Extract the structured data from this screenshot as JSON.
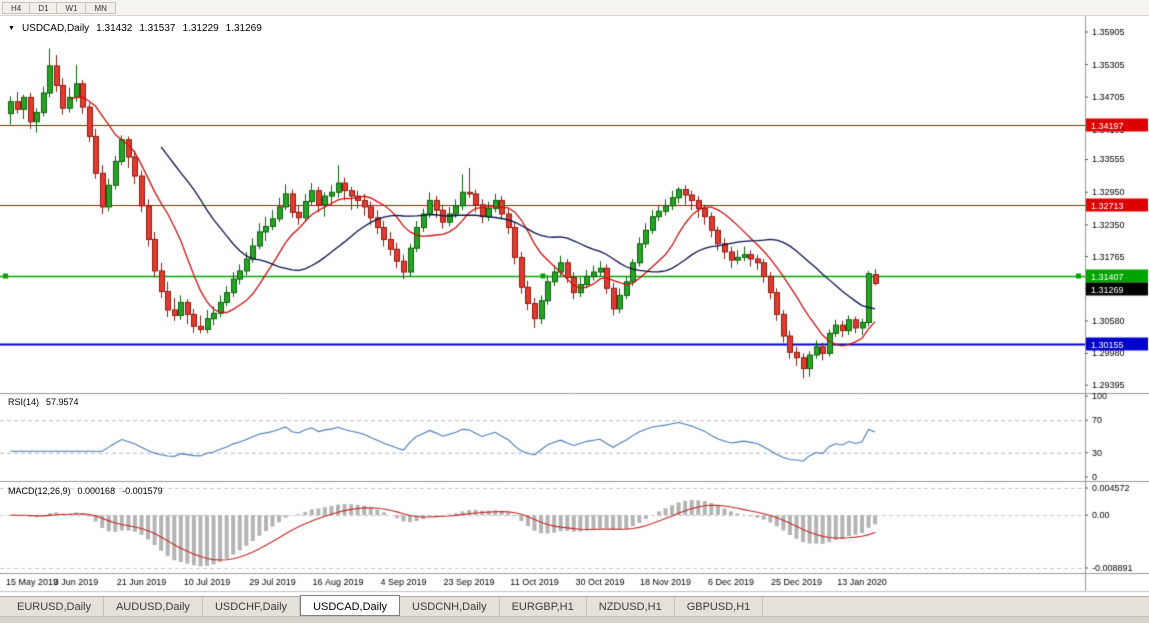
{
  "toolbar": {
    "periods": [
      "H4",
      "D1",
      "W1",
      "MN"
    ]
  },
  "tabs": {
    "items": [
      "EURUSD,Daily",
      "AUDUSD,Daily",
      "USDCHF,Daily",
      "USDCAD,Daily",
      "USDCNH,Daily",
      "EURGBP,H1",
      "NZDUSD,H1",
      "GBPUSD,H1"
    ],
    "active_index": 3
  },
  "chart_data": {
    "type": "candlestick+indicators",
    "symbol": "USDCAD",
    "timeframe": "Daily",
    "title": {
      "text": "USDCAD,Daily",
      "open": "1.31432",
      "high": "1.31537",
      "low": "1.31229",
      "close": "1.31269"
    },
    "x_labels": [
      "15 May 2019",
      "3 Jun 2019",
      "21 Jun 2019",
      "10 Jul 2019",
      "29 Jul 2019",
      "16 Aug 2019",
      "4 Sep 2019",
      "23 Sep 2019",
      "11 Oct 2019",
      "30 Oct 2019",
      "18 Nov 2019",
      "6 Dec 2019",
      "25 Dec 2019",
      "13 Jan 2020"
    ],
    "candles_per_label": 10,
    "price_axis": {
      "min": 1.2925,
      "max": 1.362,
      "labels": [
        "1.35905",
        "1.35305",
        "1.34705",
        "1.34105",
        "1.33555",
        "1.32950",
        "1.32350",
        "1.31765",
        "1.31165",
        "1.30580",
        "1.29980",
        "1.29395"
      ]
    },
    "colors": {
      "bull": "#27a327",
      "bull_edge": "#0b620b",
      "bear": "#e13b30",
      "bear_edge": "#8f1d12"
    },
    "hlines": [
      {
        "label": "1.34197",
        "price": 1.34197,
        "color": "#dd0000",
        "width": 1.2
      },
      {
        "label": "1.32713",
        "price": 1.32713,
        "color": "#dd0000",
        "width": 1.2
      },
      {
        "label": "1.31407",
        "price": 1.31407,
        "color": "#00a400",
        "width": 1.6,
        "handles": true
      },
      {
        "label": "1.30155",
        "price": 1.30155,
        "color": "#0000cd",
        "width": 2
      }
    ],
    "current_price": {
      "label": "1.31269",
      "color": "#000000"
    },
    "moving_averages": [
      {
        "name": "fast-ma",
        "period": 10,
        "color": "#cc1111"
      },
      {
        "name": "slow-ma",
        "period": 24,
        "color": "#0a1448"
      }
    ],
    "rsi": {
      "label": "RSI(14)",
      "value_text": "57.9574",
      "period": 14,
      "color": "#4a7ab5",
      "levels": [
        70,
        30
      ],
      "axis_labels": [
        {
          "v": 100,
          "t": "100"
        },
        {
          "v": 70,
          "t": "70"
        },
        {
          "v": 30,
          "t": "30"
        },
        {
          "v": 0,
          "t": "0"
        }
      ]
    },
    "macd": {
      "label": "MACD(12,26,9)",
      "value_text": "0.000168",
      "signal_text": "-0.001579",
      "fast": 12,
      "slow": 26,
      "signal": 9,
      "hist_color": "#b4b4b4",
      "signal_color": "#c62828",
      "range": {
        "max": 0.004572,
        "min": -0.008891
      },
      "axis_labels": [
        {
          "v": 0.004572,
          "t": "0.004572"
        },
        {
          "v": 0,
          "t": "0.00"
        },
        {
          "v": -0.008891,
          "t": "-0.008891"
        }
      ]
    },
    "candles": [
      [
        1.344,
        1.3472,
        1.342,
        1.3462
      ],
      [
        1.3462,
        1.348,
        1.344,
        1.3448
      ],
      [
        1.3448,
        1.3475,
        1.343,
        1.347
      ],
      [
        1.347,
        1.3478,
        1.3412,
        1.3425
      ],
      [
        1.3425,
        1.345,
        1.3405,
        1.3442
      ],
      [
        1.3442,
        1.349,
        1.3435,
        1.3478
      ],
      [
        1.3478,
        1.356,
        1.347,
        1.3528
      ],
      [
        1.3528,
        1.3548,
        1.348,
        1.3492
      ],
      [
        1.3492,
        1.3505,
        1.3438,
        1.345
      ],
      [
        1.345,
        1.3488,
        1.3442,
        1.347
      ],
      [
        1.347,
        1.353,
        1.3462,
        1.3495
      ],
      [
        1.3495,
        1.3502,
        1.344,
        1.3452
      ],
      [
        1.3452,
        1.346,
        1.3388,
        1.3398
      ],
      [
        1.3398,
        1.3412,
        1.332,
        1.333
      ],
      [
        1.333,
        1.3345,
        1.3255,
        1.3268
      ],
      [
        1.3268,
        1.332,
        1.326,
        1.3308
      ],
      [
        1.3308,
        1.3362,
        1.33,
        1.3352
      ],
      [
        1.3352,
        1.34,
        1.3345,
        1.3392
      ],
      [
        1.3392,
        1.3398,
        1.334,
        1.336
      ],
      [
        1.336,
        1.3372,
        1.331,
        1.3325
      ],
      [
        1.3325,
        1.3335,
        1.3258,
        1.327
      ],
      [
        1.327,
        1.3282,
        1.3195,
        1.3208
      ],
      [
        1.3208,
        1.3222,
        1.3138,
        1.315
      ],
      [
        1.315,
        1.3165,
        1.31,
        1.3112
      ],
      [
        1.3112,
        1.313,
        1.3065,
        1.3078
      ],
      [
        1.3078,
        1.31,
        1.3058,
        1.3068
      ],
      [
        1.3068,
        1.3105,
        1.306,
        1.3092
      ],
      [
        1.3092,
        1.3098,
        1.3052,
        1.307
      ],
      [
        1.307,
        1.308,
        1.3036,
        1.3048
      ],
      [
        1.3048,
        1.3068,
        1.3035,
        1.3042
      ],
      [
        1.3042,
        1.3078,
        1.3035,
        1.3062
      ],
      [
        1.3062,
        1.3085,
        1.305,
        1.3072
      ],
      [
        1.3072,
        1.3105,
        1.3065,
        1.3092
      ],
      [
        1.3092,
        1.3122,
        1.3085,
        1.311
      ],
      [
        1.311,
        1.3148,
        1.3102,
        1.3135
      ],
      [
        1.3135,
        1.3162,
        1.3125,
        1.315
      ],
      [
        1.315,
        1.3185,
        1.3142,
        1.3172
      ],
      [
        1.3172,
        1.321,
        1.3165,
        1.3196
      ],
      [
        1.3196,
        1.3238,
        1.319,
        1.3222
      ],
      [
        1.3222,
        1.325,
        1.3205,
        1.3232
      ],
      [
        1.3232,
        1.3262,
        1.3225,
        1.3246
      ],
      [
        1.3246,
        1.3285,
        1.324,
        1.3268
      ],
      [
        1.3268,
        1.331,
        1.3262,
        1.3292
      ],
      [
        1.3292,
        1.33,
        1.3248,
        1.3258
      ],
      [
        1.3258,
        1.327,
        1.3235,
        1.3248
      ],
      [
        1.3248,
        1.3292,
        1.3242,
        1.3278
      ],
      [
        1.3278,
        1.3312,
        1.327,
        1.3298
      ],
      [
        1.3298,
        1.3305,
        1.3258,
        1.3272
      ],
      [
        1.3272,
        1.3295,
        1.325,
        1.3288
      ],
      [
        1.3288,
        1.3308,
        1.327,
        1.3295
      ],
      [
        1.3295,
        1.3345,
        1.3285,
        1.3312
      ],
      [
        1.3312,
        1.3322,
        1.328,
        1.3298
      ],
      [
        1.3298,
        1.3305,
        1.3262,
        1.3288
      ],
      [
        1.3288,
        1.3298,
        1.3265,
        1.328
      ],
      [
        1.328,
        1.3292,
        1.3252,
        1.3268
      ],
      [
        1.3268,
        1.3278,
        1.3235,
        1.3248
      ],
      [
        1.3248,
        1.3262,
        1.3218,
        1.323
      ],
      [
        1.323,
        1.3242,
        1.3195,
        1.3208
      ],
      [
        1.3208,
        1.3222,
        1.3178,
        1.319
      ],
      [
        1.319,
        1.3202,
        1.3155,
        1.3168
      ],
      [
        1.3168,
        1.318,
        1.3135,
        1.3148
      ],
      [
        1.3148,
        1.32,
        1.314,
        1.3192
      ],
      [
        1.3192,
        1.3242,
        1.3185,
        1.323
      ],
      [
        1.323,
        1.3265,
        1.3222,
        1.3255
      ],
      [
        1.3255,
        1.3295,
        1.3248,
        1.328
      ],
      [
        1.328,
        1.3288,
        1.3248,
        1.3262
      ],
      [
        1.3262,
        1.3272,
        1.3228,
        1.324
      ],
      [
        1.324,
        1.3268,
        1.3232,
        1.3255
      ],
      [
        1.3255,
        1.3282,
        1.3248,
        1.327
      ],
      [
        1.327,
        1.3328,
        1.3262,
        1.3295
      ],
      [
        1.3295,
        1.334,
        1.3285,
        1.3292
      ],
      [
        1.3292,
        1.33,
        1.3258,
        1.3272
      ],
      [
        1.3272,
        1.3282,
        1.3238,
        1.325
      ],
      [
        1.325,
        1.3278,
        1.3242,
        1.3265
      ],
      [
        1.3265,
        1.3292,
        1.3258,
        1.328
      ],
      [
        1.328,
        1.3288,
        1.3245,
        1.3255
      ],
      [
        1.3255,
        1.3265,
        1.3218,
        1.323
      ],
      [
        1.323,
        1.324,
        1.3162,
        1.3175
      ],
      [
        1.3175,
        1.3185,
        1.3108,
        1.312
      ],
      [
        1.312,
        1.3132,
        1.3078,
        1.309
      ],
      [
        1.309,
        1.31,
        1.3045,
        1.3062
      ],
      [
        1.3062,
        1.3105,
        1.3052,
        1.3095
      ],
      [
        1.3095,
        1.3142,
        1.3088,
        1.313
      ],
      [
        1.313,
        1.316,
        1.3122,
        1.3148
      ],
      [
        1.3148,
        1.3178,
        1.314,
        1.3165
      ],
      [
        1.3165,
        1.3172,
        1.3128,
        1.3138
      ],
      [
        1.3138,
        1.3148,
        1.3098,
        1.311
      ],
      [
        1.311,
        1.3138,
        1.3102,
        1.3125
      ],
      [
        1.3125,
        1.3152,
        1.3118,
        1.314
      ],
      [
        1.314,
        1.316,
        1.3132,
        1.3148
      ],
      [
        1.3148,
        1.3168,
        1.314,
        1.3155
      ],
      [
        1.3155,
        1.3162,
        1.3108,
        1.3118
      ],
      [
        1.3118,
        1.3128,
        1.3068,
        1.308
      ],
      [
        1.308,
        1.3118,
        1.3072,
        1.3105
      ],
      [
        1.3105,
        1.314,
        1.3098,
        1.313
      ],
      [
        1.313,
        1.3172,
        1.3122,
        1.3165
      ],
      [
        1.3165,
        1.3212,
        1.3158,
        1.32
      ],
      [
        1.32,
        1.3238,
        1.3192,
        1.3225
      ],
      [
        1.3225,
        1.3262,
        1.3218,
        1.325
      ],
      [
        1.325,
        1.3272,
        1.3242,
        1.326
      ],
      [
        1.326,
        1.3282,
        1.3252,
        1.327
      ],
      [
        1.327,
        1.3298,
        1.3262,
        1.3285
      ],
      [
        1.3285,
        1.3305,
        1.3275,
        1.33
      ],
      [
        1.33,
        1.3308,
        1.3272,
        1.329
      ],
      [
        1.329,
        1.3298,
        1.3262,
        1.328
      ],
      [
        1.328,
        1.3288,
        1.3248,
        1.3265
      ],
      [
        1.3265,
        1.3272,
        1.3235,
        1.325
      ],
      [
        1.325,
        1.3258,
        1.3212,
        1.3225
      ],
      [
        1.3225,
        1.3232,
        1.3188,
        1.32
      ],
      [
        1.32,
        1.321,
        1.3172,
        1.3185
      ],
      [
        1.3185,
        1.3195,
        1.3155,
        1.317
      ],
      [
        1.317,
        1.3188,
        1.3162,
        1.3175
      ],
      [
        1.3175,
        1.3195,
        1.3168,
        1.318
      ],
      [
        1.318,
        1.3188,
        1.3158,
        1.3172
      ],
      [
        1.3172,
        1.318,
        1.3152,
        1.3165
      ],
      [
        1.3165,
        1.3172,
        1.3128,
        1.314
      ],
      [
        1.314,
        1.3148,
        1.3098,
        1.311
      ],
      [
        1.311,
        1.3118,
        1.3058,
        1.307
      ],
      [
        1.307,
        1.3078,
        1.3018,
        1.303
      ],
      [
        1.303,
        1.304,
        1.2988,
        1.3
      ],
      [
        1.3,
        1.301,
        1.2975,
        1.299
      ],
      [
        1.299,
        1.2998,
        1.2952,
        1.297
      ],
      [
        1.297,
        1.3002,
        1.2955,
        1.2995
      ],
      [
        1.2995,
        1.3022,
        1.2988,
        1.301
      ],
      [
        1.301,
        1.3018,
        1.2985,
        1.2998
      ],
      [
        1.2998,
        1.3042,
        1.2992,
        1.3035
      ],
      [
        1.3035,
        1.306,
        1.3028,
        1.305
      ],
      [
        1.305,
        1.3058,
        1.3028,
        1.304
      ],
      [
        1.304,
        1.3068,
        1.3032,
        1.306
      ],
      [
        1.306,
        1.3066,
        1.3035,
        1.3045
      ],
      [
        1.3045,
        1.3062,
        1.3032,
        1.3055
      ],
      [
        1.3055,
        1.315,
        1.3048,
        1.3145
      ],
      [
        1.31432,
        1.31537,
        1.31229,
        1.31269
      ]
    ]
  }
}
